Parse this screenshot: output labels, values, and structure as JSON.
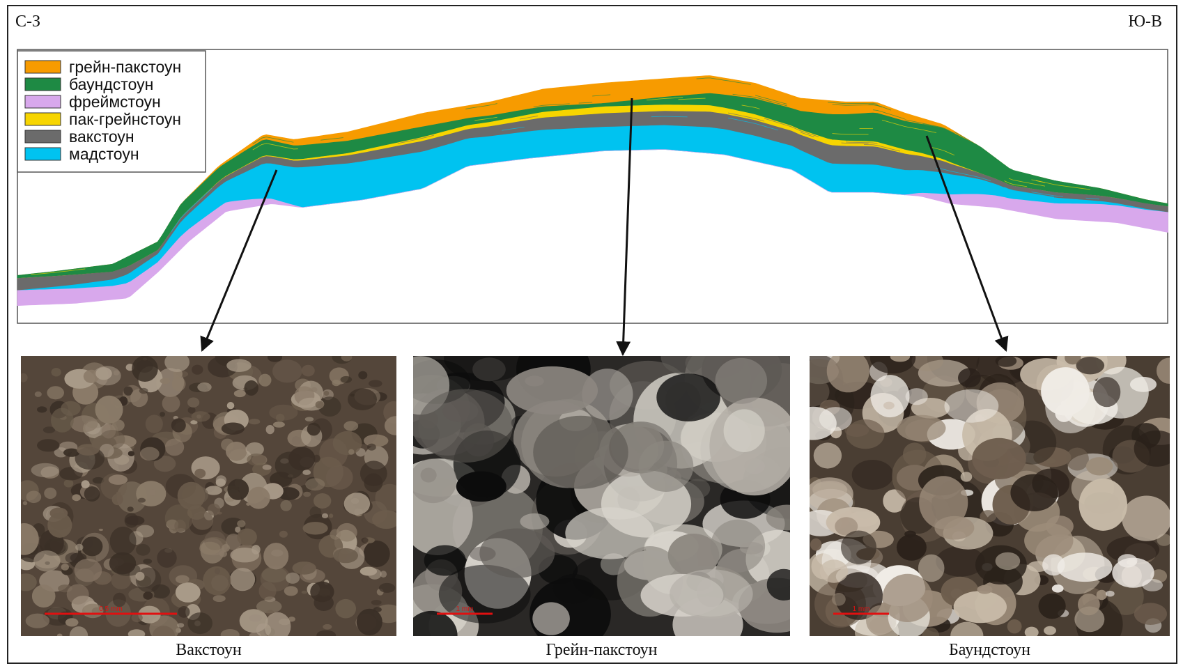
{
  "header": {
    "left_label": "С-З",
    "right_label": "Ю-В"
  },
  "legend": {
    "items": [
      {
        "label": "грейн-пакстоун",
        "color": "#f79b00"
      },
      {
        "label": "баундстоун",
        "color": "#1e8a44"
      },
      {
        "label": "фреймстоун",
        "color": "#d8a8ec"
      },
      {
        "label": "пак-грейнстоун",
        "color": "#f7d500"
      },
      {
        "label": "вакстоун",
        "color": "#6b6b6b"
      },
      {
        "label": "мадстоун",
        "color": "#00c3f0"
      }
    ]
  },
  "photos": [
    {
      "caption": "Вакстоун",
      "scale_label": "0,5 mm"
    },
    {
      "caption": "Грейн-пакстоун",
      "scale_label": "1 mm"
    },
    {
      "caption": "Баундстоун",
      "scale_label": "1 mm"
    }
  ]
}
